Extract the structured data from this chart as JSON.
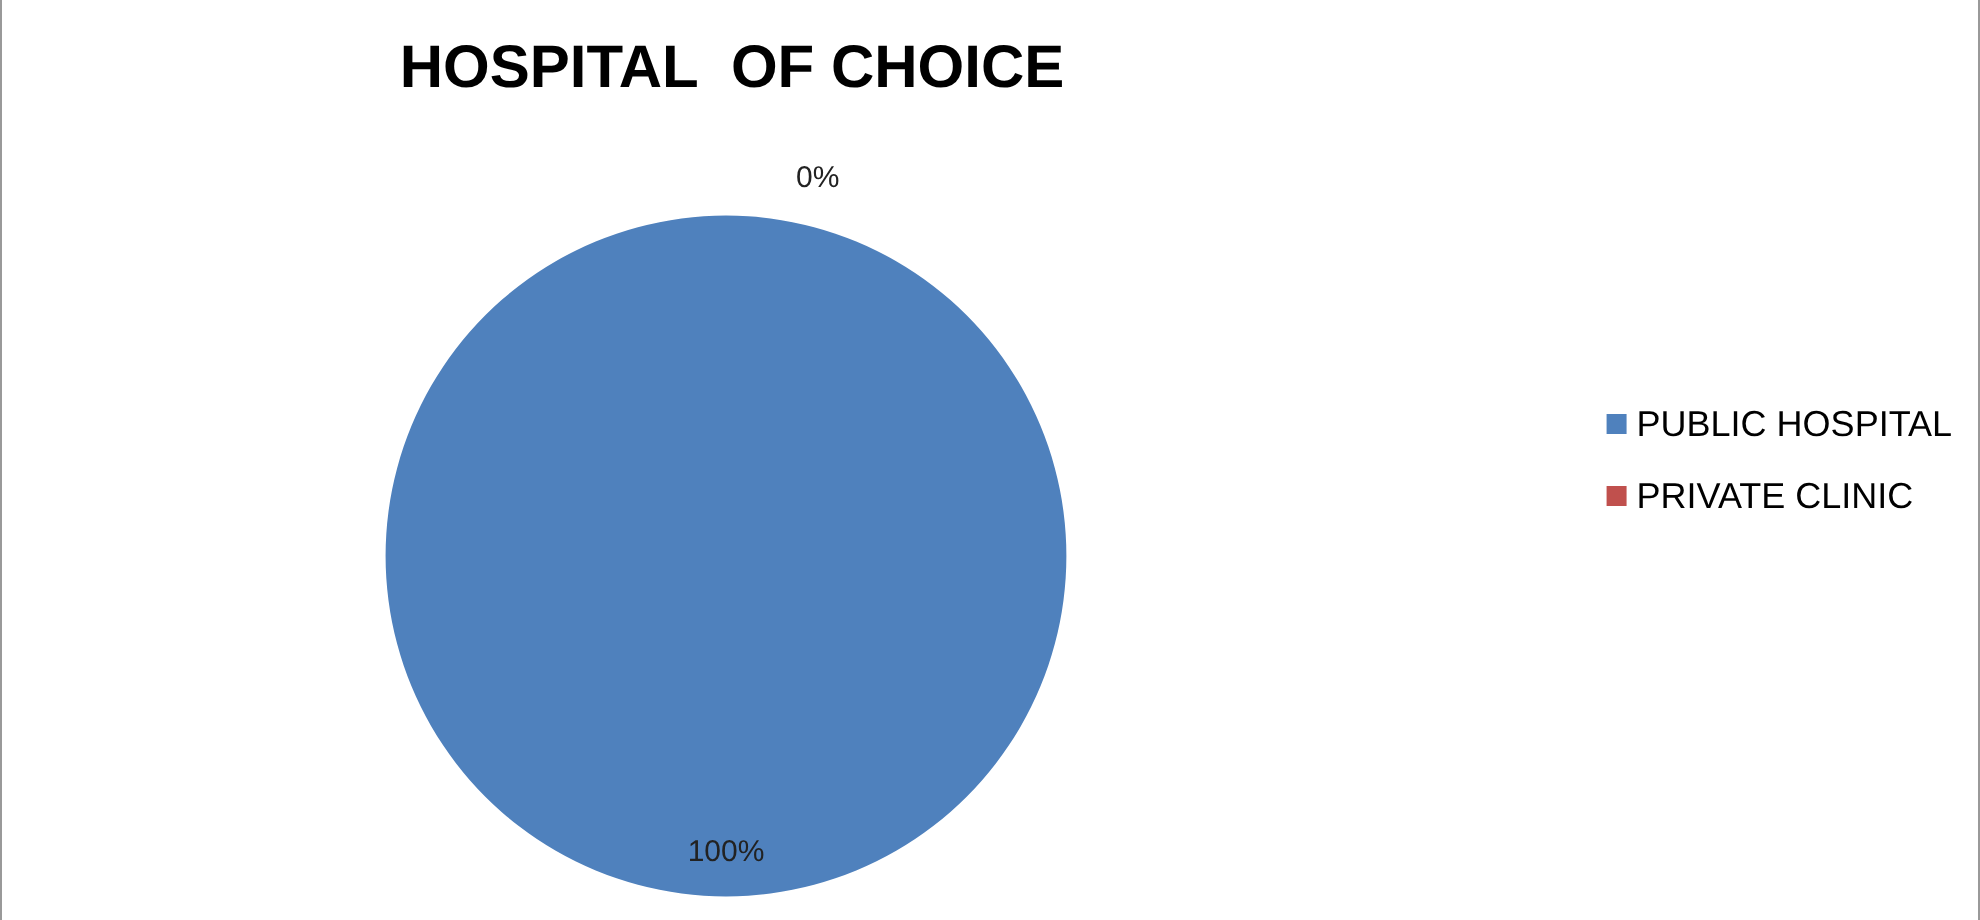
{
  "chart_data": {
    "type": "pie",
    "title": "HOSPITAL  OF CHOICE",
    "categories": [
      "PUBLIC HOSPITAL",
      "PRIVATE CLINIC"
    ],
    "values": [
      100,
      0
    ],
    "colors": [
      "#4f81bd",
      "#c0504d"
    ],
    "value_labels": [
      "100%",
      "0%"
    ],
    "legend": "right"
  }
}
